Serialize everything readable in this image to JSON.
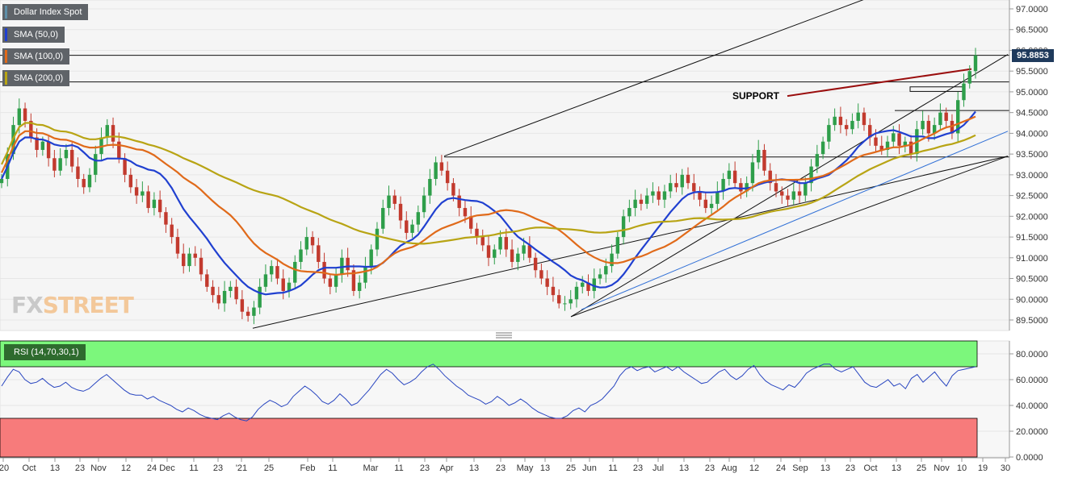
{
  "chart_data": [
    {
      "type": "candlestick",
      "legend": [
        {
          "label": "Dollar Index Spot",
          "color": "#5f8fa8"
        },
        {
          "label": "SMA (50,0)",
          "color": "#2040d0"
        },
        {
          "label": "SMA (100,0)",
          "color": "#e06a1a"
        },
        {
          "label": "SMA (200,0)",
          "color": "#b8a414"
        }
      ],
      "last_price": "95.8853",
      "ylim": [
        89.2,
        97.2
      ],
      "y_ticks": [
        "97.0000",
        "96.5000",
        "96.0000",
        "95.5000",
        "95.0000",
        "94.5000",
        "94.0000",
        "93.5000",
        "93.0000",
        "92.5000",
        "92.0000",
        "91.5000",
        "91.0000",
        "90.5000",
        "90.0000",
        "89.5000"
      ],
      "x_ticks": [
        "'20",
        "Oct",
        "13",
        "23",
        "Nov",
        "12",
        "24",
        "Dec",
        "11",
        "23",
        "'21",
        "25",
        "Feb",
        "11",
        "Mar",
        "11",
        "23",
        "Apr",
        "13",
        "23",
        "May",
        "13",
        "25",
        "Jun",
        "11",
        "23",
        "Jul",
        "13",
        "23",
        "Aug",
        "12",
        "24",
        "Sep",
        "13",
        "23",
        "Oct",
        "13",
        "25",
        "Nov",
        "10",
        "19",
        "30"
      ],
      "annotation": "SUPPORT",
      "horizontal_levels": [
        95.88,
        95.24,
        94.55,
        93.43
      ],
      "support_zone": [
        95.01,
        95.12
      ],
      "closes": [
        92.9,
        93.5,
        94.2,
        94.6,
        94.3,
        93.9,
        93.6,
        93.8,
        93.4,
        93.1,
        93.4,
        93.6,
        93.2,
        92.9,
        92.7,
        93.0,
        93.5,
        93.9,
        94.2,
        93.8,
        93.4,
        93.0,
        92.7,
        92.5,
        92.6,
        92.2,
        92.4,
        92.1,
        91.8,
        91.5,
        91.1,
        90.8,
        91.1,
        91.0,
        90.6,
        90.3,
        90.1,
        89.9,
        90.2,
        90.3,
        90.0,
        89.7,
        89.6,
        89.8,
        90.3,
        90.6,
        90.8,
        90.5,
        90.2,
        90.4,
        90.9,
        91.2,
        91.5,
        91.3,
        90.9,
        90.5,
        90.3,
        90.6,
        91.0,
        90.7,
        90.2,
        90.4,
        90.8,
        91.2,
        91.7,
        92.2,
        92.5,
        92.3,
        91.9,
        91.6,
        91.8,
        92.1,
        92.5,
        92.9,
        93.3,
        93.1,
        92.8,
        92.5,
        92.2,
        92.0,
        91.7,
        91.5,
        91.3,
        91.0,
        91.2,
        91.5,
        91.2,
        90.9,
        91.1,
        91.3,
        91.0,
        90.7,
        90.5,
        90.3,
        90.1,
        89.9,
        89.9,
        90.0,
        90.3,
        90.4,
        90.2,
        90.5,
        90.6,
        90.8,
        91.1,
        91.5,
        92.0,
        92.2,
        92.4,
        92.3,
        92.5,
        92.6,
        92.4,
        92.6,
        92.8,
        92.7,
        93.0,
        92.8,
        92.6,
        92.4,
        92.2,
        92.3,
        92.6,
        92.9,
        93.1,
        92.8,
        92.6,
        92.8,
        93.3,
        93.6,
        93.1,
        92.8,
        92.6,
        92.5,
        92.4,
        92.6,
        92.5,
        92.8,
        93.2,
        93.5,
        93.8,
        94.2,
        94.4,
        94.2,
        94.1,
        94.3,
        94.5,
        94.2,
        93.9,
        93.7,
        93.6,
        93.8,
        94.0,
        93.7,
        93.8,
        93.5,
        94.1,
        94.3,
        94.0,
        94.2,
        94.5,
        94.3,
        94.0,
        94.8,
        95.2,
        95.5,
        95.88
      ]
    },
    {
      "type": "line",
      "legend": [
        {
          "label": "RSI (14,70,30,1)",
          "color": "#2946c0"
        }
      ],
      "ylim": [
        0,
        90
      ],
      "y_ticks": [
        "80.0000",
        "60.0000",
        "40.0000",
        "20.0000",
        "0.0000"
      ],
      "overbought": 70,
      "oversold": 30,
      "values": [
        55,
        62,
        68,
        66,
        60,
        57,
        58,
        61,
        57,
        54,
        55,
        58,
        54,
        52,
        51,
        53,
        57,
        61,
        64,
        60,
        56,
        52,
        49,
        48,
        48,
        45,
        47,
        44,
        42,
        40,
        37,
        35,
        38,
        36,
        33,
        31,
        30,
        29,
        32,
        34,
        31,
        29,
        28,
        31,
        37,
        41,
        44,
        42,
        39,
        41,
        47,
        51,
        55,
        52,
        48,
        43,
        41,
        44,
        49,
        45,
        40,
        42,
        47,
        52,
        58,
        64,
        68,
        65,
        60,
        56,
        58,
        61,
        66,
        70,
        72,
        68,
        63,
        59,
        55,
        52,
        48,
        46,
        44,
        41,
        43,
        47,
        44,
        40,
        42,
        45,
        42,
        38,
        35,
        33,
        31,
        30,
        30,
        32,
        36,
        38,
        35,
        40,
        42,
        45,
        50,
        55,
        63,
        68,
        70,
        67,
        69,
        70,
        66,
        68,
        70,
        67,
        70,
        66,
        63,
        60,
        57,
        58,
        62,
        66,
        68,
        63,
        60,
        63,
        68,
        71,
        64,
        59,
        56,
        54,
        52,
        56,
        54,
        59,
        65,
        68,
        70,
        72,
        72,
        68,
        66,
        68,
        70,
        64,
        58,
        55,
        54,
        57,
        60,
        55,
        57,
        53,
        61,
        64,
        58,
        62,
        66,
        60,
        55,
        63,
        67,
        68,
        69,
        70
      ]
    }
  ]
}
